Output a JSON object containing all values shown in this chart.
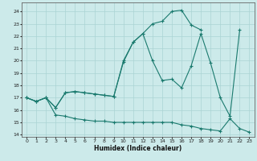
{
  "xlabel": "Humidex (Indice chaleur)",
  "bg_color": "#cceaea",
  "line_color": "#1a7a6e",
  "grid_color": "#aad4d4",
  "xlim": [
    -0.5,
    23.5
  ],
  "ylim": [
    13.8,
    24.7
  ],
  "yticks": [
    14,
    15,
    16,
    17,
    18,
    19,
    20,
    21,
    22,
    23,
    24
  ],
  "xticks": [
    0,
    1,
    2,
    3,
    4,
    5,
    6,
    7,
    8,
    9,
    10,
    11,
    12,
    13,
    14,
    15,
    16,
    17,
    18,
    19,
    20,
    21,
    22,
    23
  ],
  "line1_x": [
    0,
    1,
    2,
    3,
    4,
    5,
    6,
    7,
    8,
    9,
    10,
    11,
    12,
    13,
    14,
    15,
    16,
    17,
    18,
    19,
    20,
    21,
    22,
    23
  ],
  "line1_y": [
    17.0,
    16.7,
    17.0,
    15.6,
    15.5,
    15.3,
    15.2,
    15.1,
    15.1,
    15.0,
    15.0,
    15.0,
    15.0,
    15.0,
    15.0,
    15.0,
    14.8,
    14.7,
    14.5,
    14.4,
    14.3,
    15.3,
    14.5,
    14.2
  ],
  "line2_x": [
    0,
    1,
    2,
    3,
    4,
    5,
    6,
    7,
    8,
    9,
    10,
    11,
    12,
    13,
    14,
    15,
    16,
    17,
    18,
    19,
    20,
    21,
    22,
    23
  ],
  "line2_y": [
    17.0,
    16.7,
    17.0,
    16.2,
    17.4,
    17.5,
    17.4,
    17.3,
    17.2,
    17.1,
    19.9,
    21.5,
    22.2,
    20.0,
    18.4,
    18.5,
    17.8,
    19.6,
    22.2,
    19.8,
    17.0,
    15.5,
    22.5,
    null
  ],
  "line3_x": [
    0,
    1,
    2,
    3,
    4,
    5,
    6,
    7,
    8,
    9,
    10,
    11,
    12,
    13,
    14,
    15,
    16,
    17,
    18,
    19,
    20,
    21,
    22,
    23
  ],
  "line3_y": [
    17.0,
    16.7,
    17.0,
    16.2,
    17.4,
    17.5,
    17.4,
    17.3,
    17.2,
    17.1,
    20.0,
    21.5,
    22.2,
    23.0,
    23.2,
    24.0,
    24.1,
    22.9,
    22.5,
    null,
    null,
    null,
    null,
    null
  ]
}
